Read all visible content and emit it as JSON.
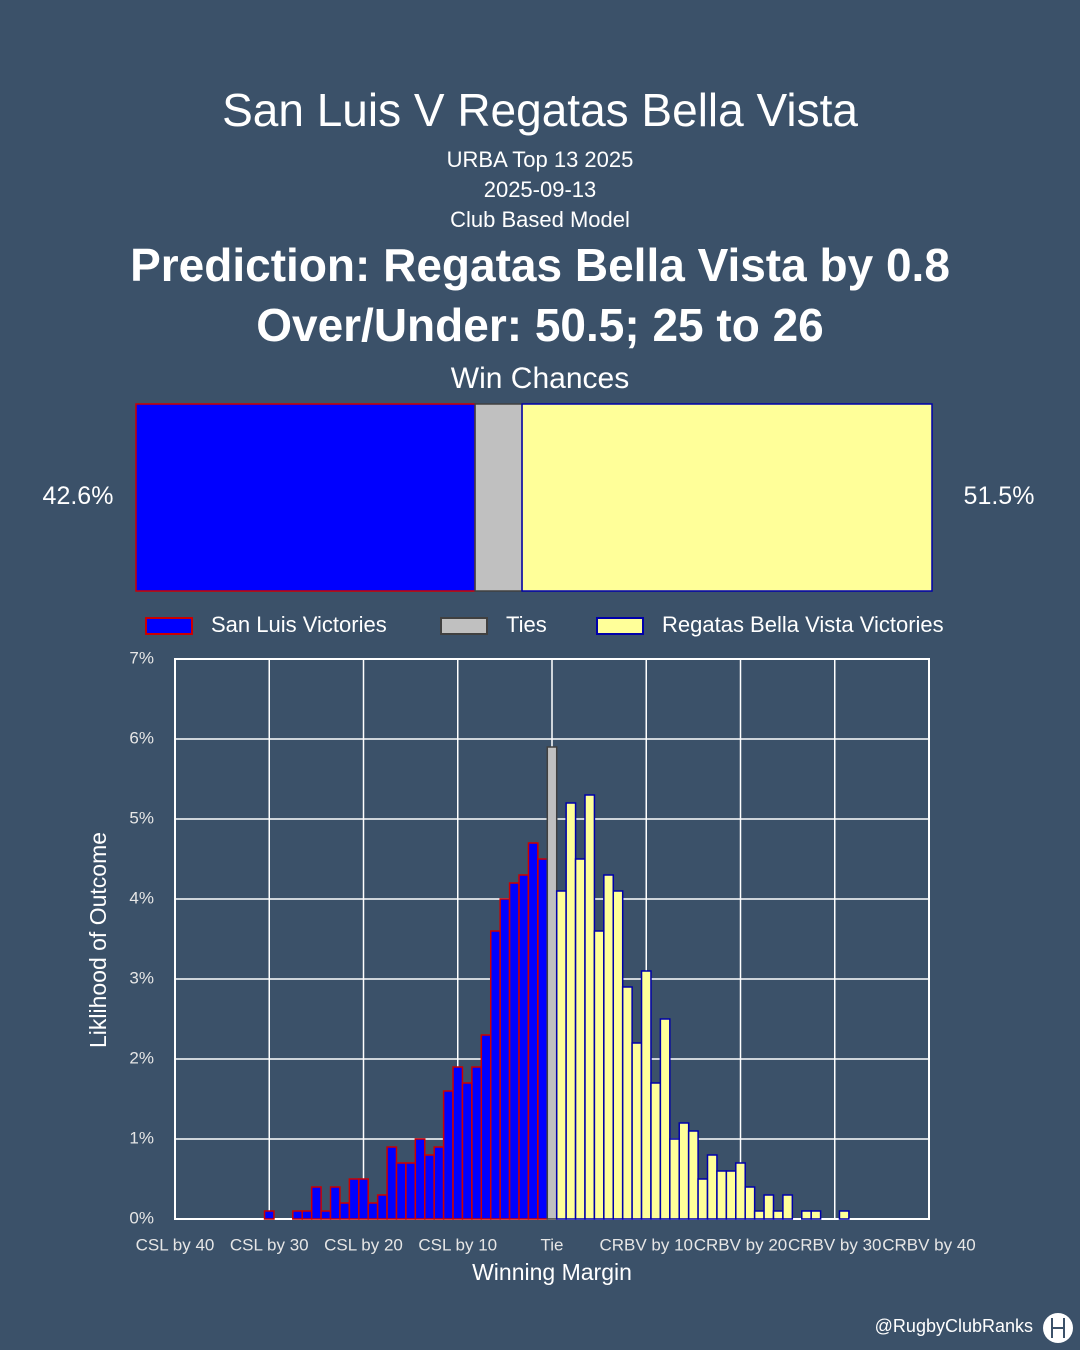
{
  "header": {
    "title": "San Luis V Regatas Bella Vista",
    "competition": "URBA Top 13 2025",
    "date": "2025-09-13",
    "model": "Club Based Model",
    "prediction": "Prediction: Regatas Bella Vista by 0.8",
    "over_under": "Over/Under: 50.5; 25 to 26"
  },
  "chart_data": [
    {
      "type": "stacked-bar",
      "title": "Win Chances",
      "xlim": [
        0,
        100
      ],
      "series": [
        {
          "name": "San Luis Victories",
          "color": "#0000ff",
          "edge": "#cc0000",
          "values": [
            42.6
          ],
          "value_labels": [
            "42.6%"
          ]
        },
        {
          "name": "Ties",
          "color": "#c0c0c0",
          "edge": "#404040",
          "values": [
            5.9
          ]
        },
        {
          "name": "Regatas Bella Vista Victories",
          "color": "#ffff99",
          "edge": "#0000aa",
          "values": [
            51.5
          ],
          "value_labels": [
            "51.5%"
          ]
        }
      ]
    },
    {
      "type": "histogram",
      "xlabel": "Winning Margin",
      "ylabel": "Liklihood of Outcome",
      "xlim": [
        -40,
        40
      ],
      "ylim": [
        0,
        7
      ],
      "grid": true,
      "xticks": [
        {
          "value": -40,
          "label": "CSL by 40"
        },
        {
          "value": -30,
          "label": "CSL by 30"
        },
        {
          "value": -20,
          "label": "CSL by 20"
        },
        {
          "value": -10,
          "label": "CSL by 10"
        },
        {
          "value": 0,
          "label": "Tie"
        },
        {
          "value": 10,
          "label": "CRBV by 10"
        },
        {
          "value": 20,
          "label": "CRBV by 20"
        },
        {
          "value": 30,
          "label": "CRBV by 30"
        },
        {
          "value": 40,
          "label": "CRBV by 40"
        }
      ],
      "yticks": [
        {
          "value": 0,
          "label": "0%"
        },
        {
          "value": 1,
          "label": "1%"
        },
        {
          "value": 2,
          "label": "2%"
        },
        {
          "value": 3,
          "label": "3%"
        },
        {
          "value": 4,
          "label": "4%"
        },
        {
          "value": 5,
          "label": "5%"
        },
        {
          "value": 6,
          "label": "6%"
        },
        {
          "value": 7,
          "label": "7%"
        }
      ],
      "series": [
        {
          "color": "#0000ff",
          "edge": "#cc0000",
          "x": [
            -30,
            -29,
            -28,
            -27,
            -26,
            -25,
            -24,
            -23,
            -22,
            -21,
            -20,
            -19,
            -18,
            -17,
            -16,
            -15,
            -14,
            -13,
            -12,
            -11,
            -10,
            -9,
            -8,
            -7,
            -6,
            -5,
            -4,
            -3,
            -2,
            -1
          ],
          "values": [
            0.1,
            0,
            0,
            0.1,
            0.1,
            0.4,
            0.1,
            0.4,
            0.2,
            0.5,
            0.5,
            0.2,
            0.3,
            0.9,
            0.7,
            0.7,
            1.0,
            0.8,
            0.9,
            1.6,
            1.9,
            1.7,
            1.9,
            2.3,
            3.6,
            4.0,
            4.2,
            4.3,
            4.7,
            4.5
          ]
        },
        {
          "color": "#c0c0c0",
          "edge": "#404040",
          "x": [
            0
          ],
          "values": [
            5.9
          ]
        },
        {
          "color": "#ffff99",
          "edge": "#0000aa",
          "x": [
            1,
            2,
            3,
            4,
            5,
            6,
            7,
            8,
            9,
            10,
            11,
            12,
            13,
            14,
            15,
            16,
            17,
            18,
            19,
            20,
            21,
            22,
            23,
            24,
            25,
            26,
            27,
            28,
            29,
            30,
            31
          ],
          "values": [
            4.1,
            5.2,
            4.5,
            5.3,
            3.6,
            4.3,
            4.1,
            2.9,
            2.2,
            3.1,
            1.7,
            2.5,
            1.0,
            1.2,
            1.1,
            0.5,
            0.8,
            0.6,
            0.6,
            0.7,
            0.4,
            0.1,
            0.3,
            0.1,
            0.3,
            0,
            0.1,
            0.1,
            0,
            0,
            0.1
          ]
        }
      ]
    }
  ],
  "footer": {
    "handle": "@RugbyClubRanks"
  }
}
